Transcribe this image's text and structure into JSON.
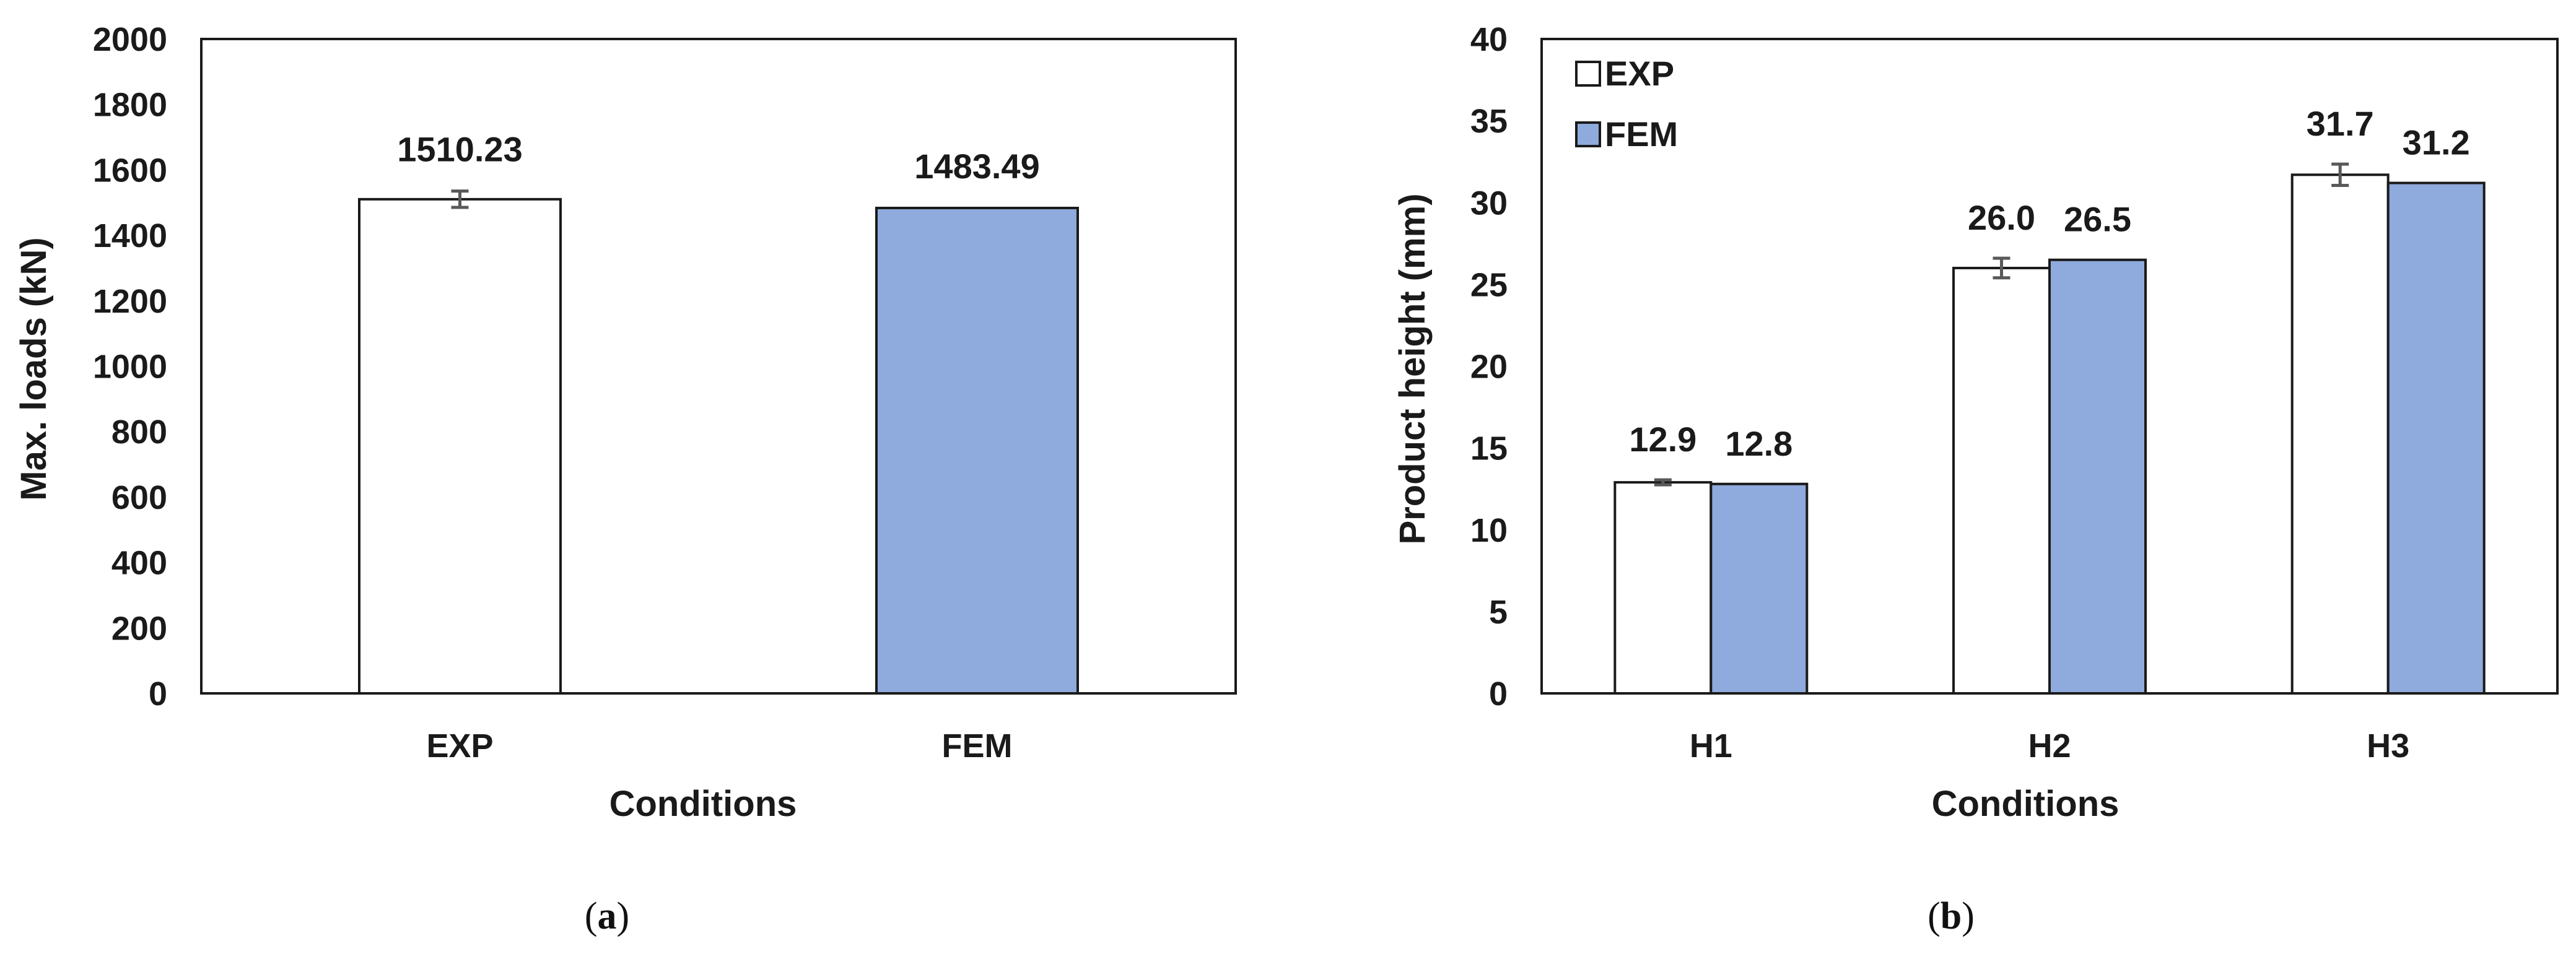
{
  "chart_data": [
    {
      "type": "bar",
      "categories": [
        "EXP",
        "FEM"
      ],
      "values": [
        1510.23,
        1483.49
      ],
      "data_labels": [
        "1510.23",
        "1483.49"
      ],
      "error_bars": [
        25,
        null
      ],
      "bar_colors": [
        "#ffffff",
        "#8faadc"
      ],
      "xlabel": "Conditions",
      "ylabel": "Max. loads (kN)",
      "ylim": [
        0,
        2000
      ],
      "yticks": [
        "0",
        "200",
        "400",
        "600",
        "800",
        "1000",
        "1200",
        "1400",
        "1600",
        "1800",
        "2000"
      ],
      "grid": false,
      "legend": null,
      "caption": {
        "open": "(",
        "letter": "a",
        "close": ")"
      }
    },
    {
      "type": "bar",
      "categories": [
        "H1",
        "H2",
        "H3"
      ],
      "series": [
        {
          "name": "EXP",
          "color": "#ffffff",
          "values": [
            12.9,
            26.0,
            31.7
          ],
          "labels": [
            "12.9",
            "26.0",
            "31.7"
          ],
          "errors": [
            0.15,
            0.6,
            0.65
          ]
        },
        {
          "name": "FEM",
          "color": "#8faadc",
          "values": [
            12.8,
            26.5,
            31.2
          ],
          "labels": [
            "12.8",
            "26.5",
            "31.2"
          ],
          "errors": [
            null,
            null,
            null
          ]
        }
      ],
      "xlabel": "Conditions",
      "ylabel": "Product height (mm)",
      "ylim": [
        0,
        40
      ],
      "yticks": [
        "0",
        "5",
        "10",
        "15",
        "20",
        "25",
        "30",
        "35",
        "40"
      ],
      "grid": false,
      "legend": "top-left",
      "caption": {
        "open": "(",
        "letter": "b",
        "close": ")"
      }
    }
  ],
  "colors": {
    "axis": "#1a1a1a",
    "error_bar": "#595959",
    "exp_fill": "#ffffff",
    "fem_fill": "#8faadc"
  }
}
